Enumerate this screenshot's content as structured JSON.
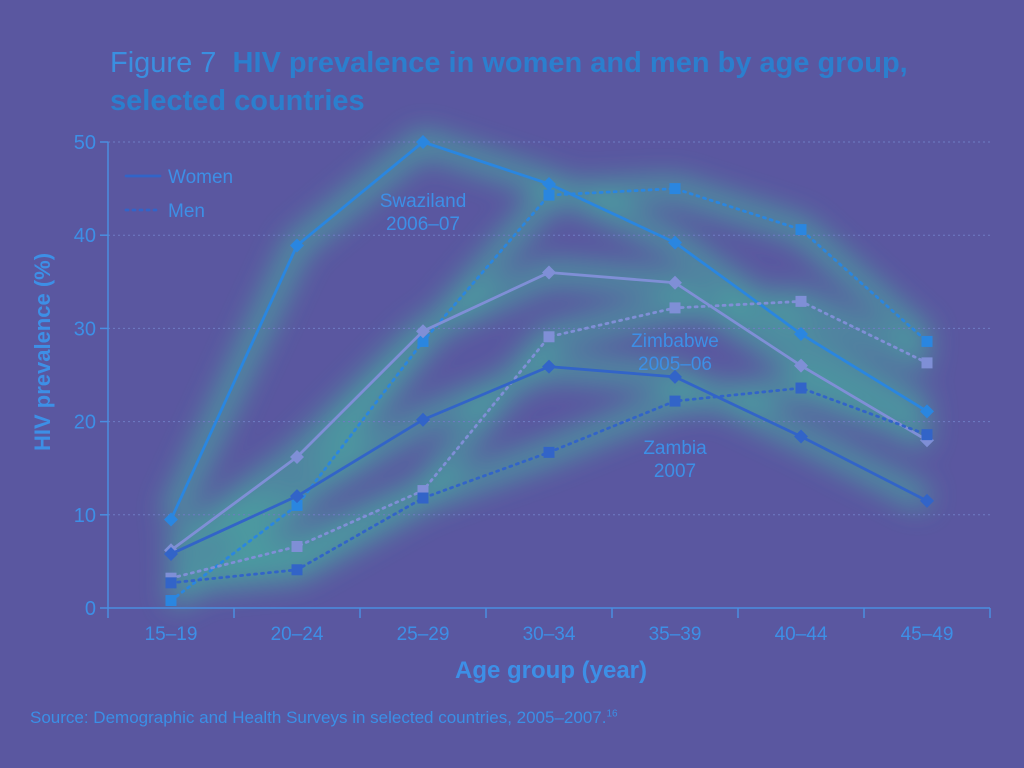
{
  "figure": {
    "number": "Figure 7",
    "title": "HIV prevalence in women and men by age group, selected countries",
    "source": "Source: Demographic and Health Surveys in selected countries, 2005–2007.",
    "source_ref": "16"
  },
  "colors": {
    "background": "#5a57a0",
    "swaziland": "#2a86e0",
    "zimbabwe": "#7f8fd6",
    "zambia": "#3264c8",
    "axis": "#4a8ee0",
    "grid": "#6f7cc4"
  },
  "chart_data": {
    "type": "line",
    "title": "HIV prevalence in women and men by age group, selected countries",
    "xlabel": "Age group (year)",
    "ylabel": "HIV prevalence (%)",
    "ylim": [
      0,
      50
    ],
    "yticks": [
      0,
      10,
      20,
      30,
      40,
      50
    ],
    "grid": true,
    "legend_placement": "top-left",
    "legend": [
      {
        "label": "Women",
        "style": "solid"
      },
      {
        "label": "Men",
        "style": "dotted"
      }
    ],
    "categories": [
      "15–19",
      "20–24",
      "25–29",
      "30–34",
      "35–39",
      "40–44",
      "45–49"
    ],
    "annotations": [
      {
        "text": "Swaziland\n2006–07",
        "x": "25–29",
        "y": 43
      },
      {
        "text": "Zimbabwe\n2005–06",
        "x": "35–39",
        "y": 28
      },
      {
        "text": "Zambia\n2007",
        "x": "35–39",
        "y": 16.5
      }
    ],
    "series": [
      {
        "group": "Swaziland 2006–07",
        "gender": "Women",
        "style": "solid",
        "marker": "diamond",
        "color": "#2a86e0",
        "values": [
          9.5,
          38.9,
          50.0,
          45.5,
          39.2,
          29.4,
          21.1
        ]
      },
      {
        "group": "Swaziland 2006–07",
        "gender": "Men",
        "style": "dotted",
        "marker": "square",
        "color": "#2a86e0",
        "values": [
          0.8,
          11.0,
          28.6,
          44.3,
          45.0,
          40.6,
          28.6
        ]
      },
      {
        "group": "Zimbabwe 2005–06",
        "gender": "Women",
        "style": "solid",
        "marker": "diamond",
        "color": "#7f8fd6",
        "values": [
          6.2,
          16.2,
          29.7,
          36.0,
          34.9,
          26.0,
          18.0
        ]
      },
      {
        "group": "Zimbabwe 2005–06",
        "gender": "Men",
        "style": "dotted",
        "marker": "square",
        "color": "#7f8fd6",
        "values": [
          3.2,
          6.6,
          12.6,
          29.1,
          32.2,
          32.9,
          26.3
        ]
      },
      {
        "group": "Zambia 2007",
        "gender": "Women",
        "style": "solid",
        "marker": "diamond",
        "color": "#3264c8",
        "values": [
          5.8,
          12.0,
          20.2,
          25.9,
          24.8,
          18.4,
          11.5
        ]
      },
      {
        "group": "Zambia 2007",
        "gender": "Men",
        "style": "dotted",
        "marker": "square",
        "color": "#3264c8",
        "values": [
          2.7,
          4.1,
          11.8,
          16.7,
          22.2,
          23.6,
          18.6
        ]
      }
    ]
  }
}
